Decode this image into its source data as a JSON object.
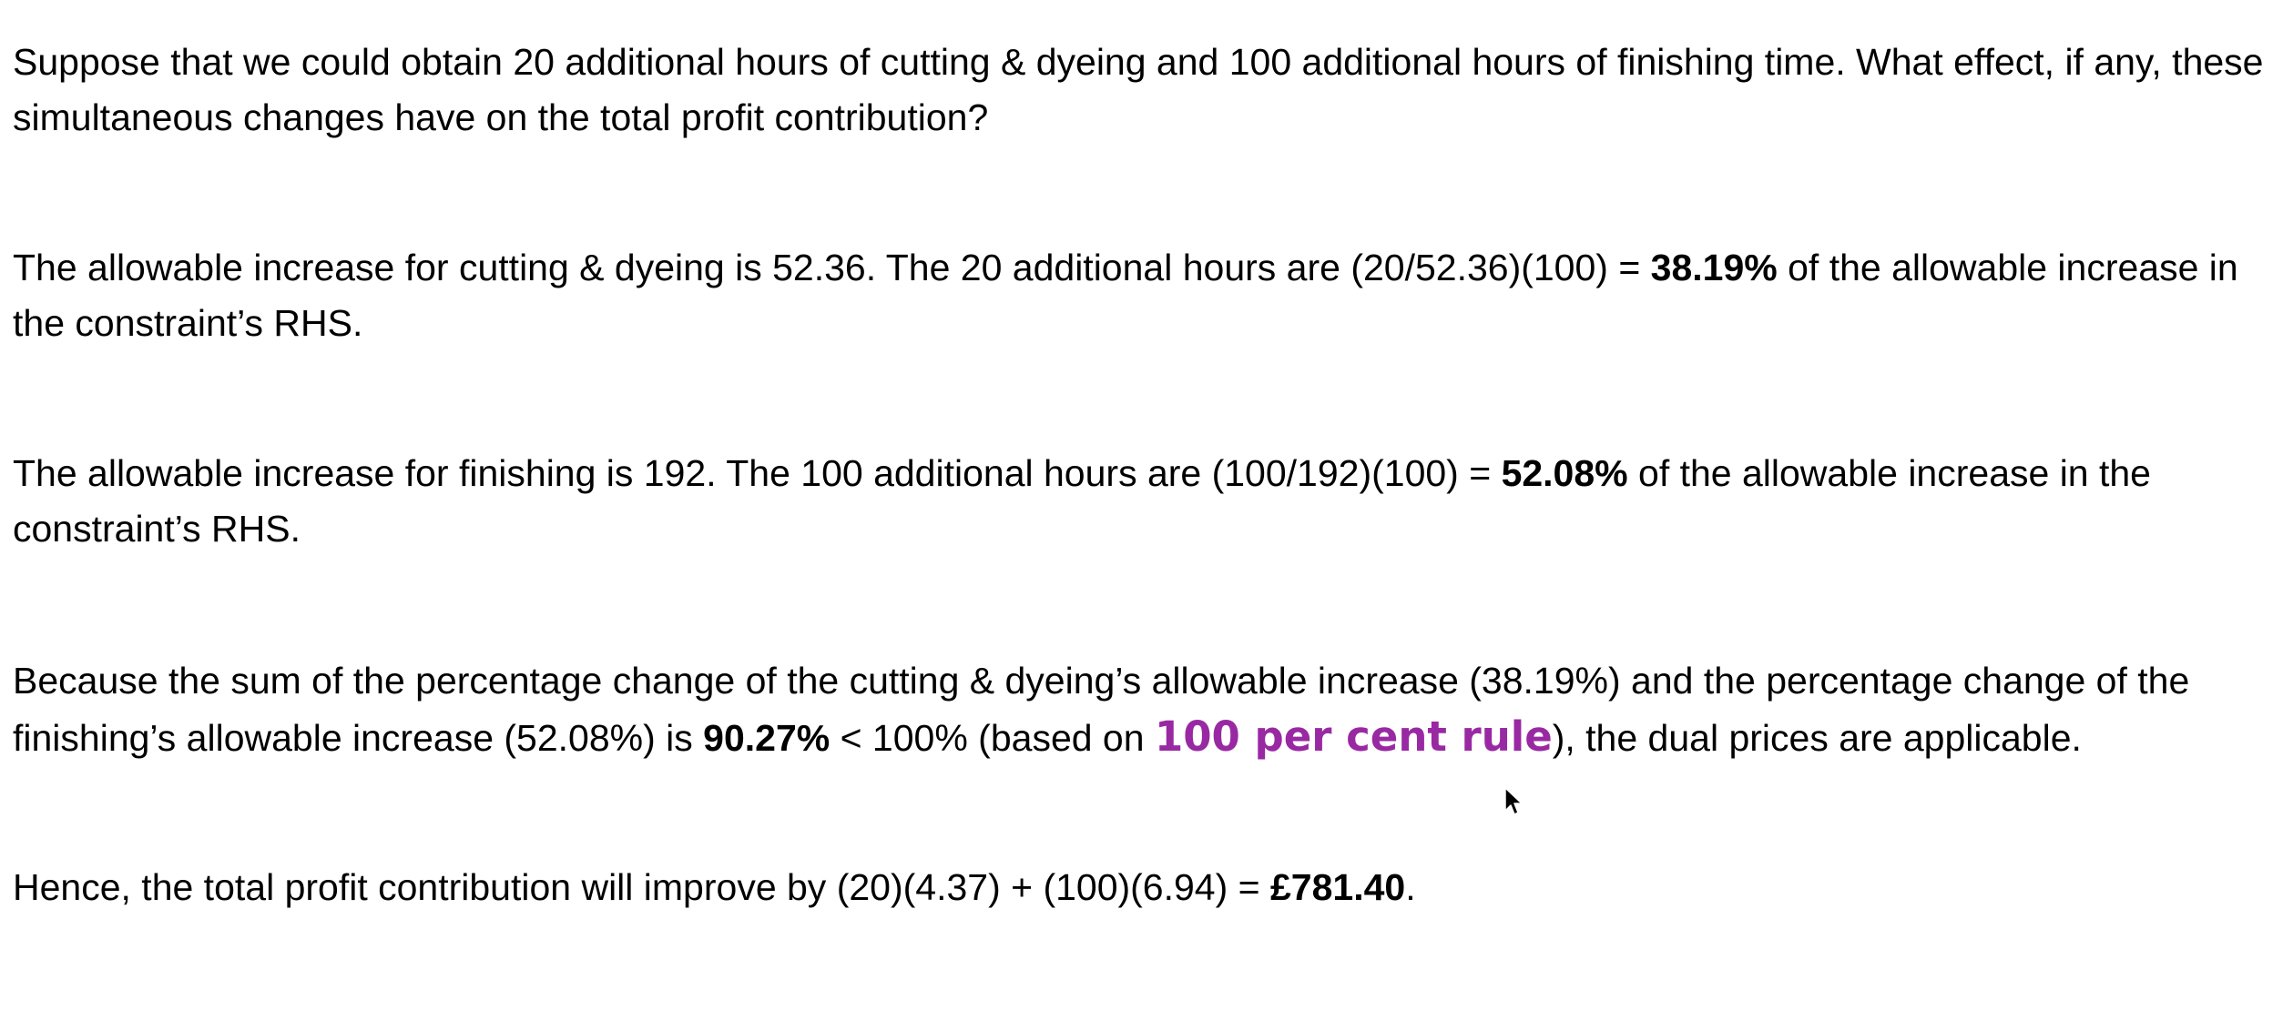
{
  "paragraphs": {
    "p1": {
      "text": "Suppose that we could obtain 20 additional hours of cutting & dyeing and 100 additional hours of finishing time. What effect, if any, these simultaneous changes have on the total profit contribution?"
    },
    "p2": {
      "pre": "The allowable increase for cutting & dyeing is 52.36. The 20 additional hours are (20/52.36)(100) = ",
      "bold": "38.19%",
      "post": " of the allowable increase in the constraint’s RHS."
    },
    "p3": {
      "pre": "The allowable increase for finishing is 192. The 100 additional hours are (100/192)(100) = ",
      "bold": "52.08%",
      "post": " of the allowable increase in the constraint’s RHS."
    },
    "p4": {
      "pre": "Because the sum of the percentage change of the cutting & dyeing’s allowable increase (38.19%) and the percentage change of the finishing’s allowable increase (52.08%) is ",
      "bold": "90.27%",
      "mid": " < 100% (based on ",
      "highlight": "100 per cent rule",
      "post": "), the dual prices are applicable."
    },
    "p5": {
      "pre": "Hence, the total profit contribution will improve by (20)(4.37) + (100)(6.94) = ",
      "bold": "£781.40",
      "post": "."
    }
  },
  "colors": {
    "highlight": "#9929a3",
    "text": "#000000",
    "background": "#ffffff"
  },
  "icons": {
    "cursor": "mouse-pointer-icon"
  }
}
